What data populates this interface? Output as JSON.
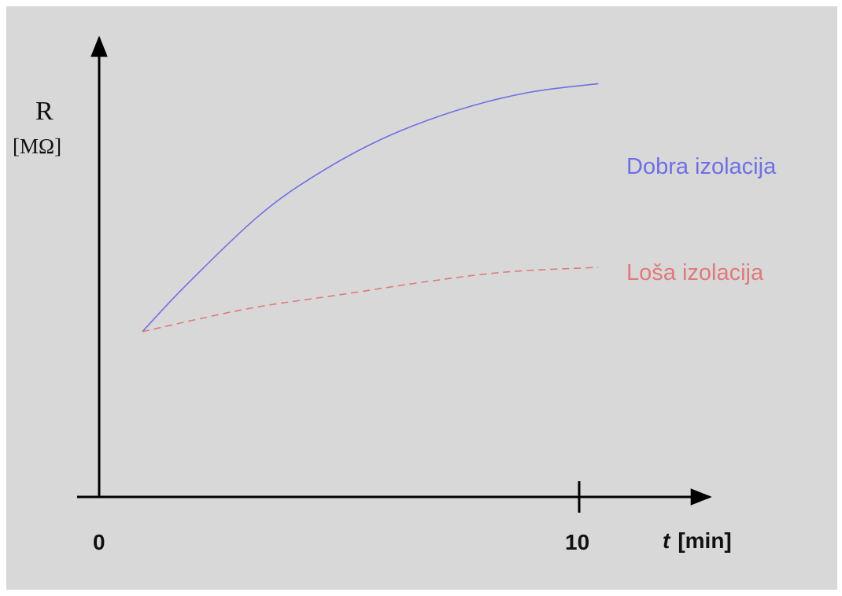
{
  "colors": {
    "background": "#d8d8d8",
    "axis": "#000000",
    "good": "#6f6fe6",
    "bad": "#e07a7a"
  },
  "chart_data": {
    "type": "line",
    "title": "",
    "ylabel": "R",
    "yunit": "[MΩ]",
    "xlabel_italic": "t",
    "xlabel_unit": "[min]",
    "x_ticks": [
      "0",
      "10"
    ],
    "xlim": [
      0,
      10
    ],
    "grid": false,
    "series": [
      {
        "name": "Dobra izolacija",
        "style": "solid",
        "color": "#6f6fe6",
        "x": [
          0.9,
          1.8,
          3.3,
          4.5,
          5.9,
          7.4,
          8.9,
          10.4
        ],
        "y": [
          0.36,
          0.46,
          0.61,
          0.7,
          0.78,
          0.84,
          0.88,
          0.9
        ]
      },
      {
        "name": "Loša izolacija",
        "style": "dashed",
        "color": "#e07a7a",
        "x": [
          0.9,
          3.1,
          5.0,
          6.9,
          8.5,
          10.4
        ],
        "y": [
          0.36,
          0.41,
          0.44,
          0.47,
          0.49,
          0.5
        ]
      }
    ]
  }
}
